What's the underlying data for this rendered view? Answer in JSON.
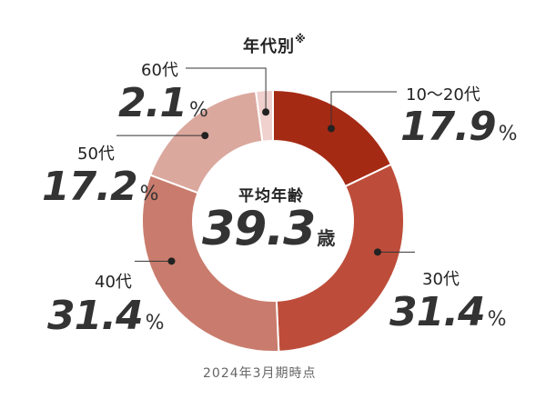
{
  "chart_data": {
    "type": "pie",
    "variant": "donut",
    "title": "年代別",
    "title_mark": "※",
    "categories": [
      "10〜20代",
      "30代",
      "40代",
      "50代",
      "60代"
    ],
    "values": [
      17.9,
      31.4,
      31.4,
      17.2,
      2.1
    ],
    "unit": "%",
    "colors": [
      "#a52a14",
      "#bd4d3a",
      "#c97c6d",
      "#dba89e",
      "#f0d1ce"
    ],
    "center": {
      "label": "平均年齢",
      "value": "39.3",
      "unit": "歳"
    },
    "note": "2024年3月期時点"
  }
}
